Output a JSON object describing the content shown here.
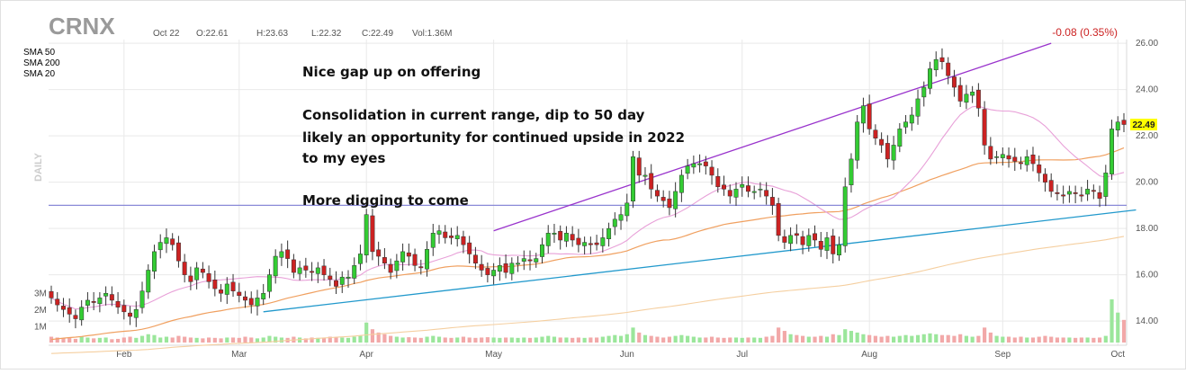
{
  "header": {
    "ticker": "CRNX",
    "date": "Oct 22",
    "open": "O:22.61",
    "high": "H:23.63",
    "low": "L:22.32",
    "close": "C:22.49",
    "volume": "Vol:1.36M",
    "change": "-0.08 (0.35%)"
  },
  "legend": [
    {
      "label": "SMA 50",
      "color": "#f0a060"
    },
    {
      "label": "SMA 200",
      "color": "#f5cfa0"
    },
    {
      "label": "SMA 20",
      "color": "#e8a0d8"
    }
  ],
  "period_label": "DAILY",
  "annotations": [
    "Nice gap up on offering",
    "Consolidation in current range, dip to 50 day",
    "likely an opportunity for continued upside in 2022",
    "to my eyes",
    "More digging to come"
  ],
  "last_price": "22.49",
  "colors": {
    "up": "#33cc33",
    "down": "#cc2222",
    "vol_up": "#9be69b",
    "vol_down": "#f2a8a8",
    "trend_upper": "#9933cc",
    "trend_lower": "#2299cc",
    "horizontal": "#8a8ad8",
    "grid": "#e9e9e9",
    "price_tag": "#ffff00"
  },
  "chart_data": {
    "type": "candlestick",
    "y_range": [
      13.5,
      26.2
    ],
    "y_ticks": [
      "26.00",
      "24.00",
      "22.00",
      "20.00",
      "18.00",
      "16.00",
      "14.00"
    ],
    "y_tick_values": [
      26,
      24,
      22,
      20,
      18,
      16,
      14
    ],
    "x_ticks": [
      "Feb",
      "Mar",
      "Apr",
      "May",
      "Jun",
      "Jul",
      "Aug",
      "Sep",
      "Oct"
    ],
    "volume_ticks": [
      "3M",
      "2M",
      "1M"
    ],
    "volume_tick_values": [
      3,
      2,
      1
    ],
    "closes": [
      15.0,
      14.7,
      14.5,
      14.3,
      14.1,
      14.6,
      14.9,
      14.8,
      15.0,
      15.2,
      14.9,
      14.6,
      14.4,
      14.2,
      14.5,
      15.3,
      16.2,
      17.0,
      17.4,
      17.6,
      17.3,
      16.6,
      16.0,
      15.7,
      16.3,
      16.1,
      15.7,
      15.4,
      15.2,
      15.6,
      15.3,
      15.1,
      14.9,
      14.7,
      15.0,
      15.2,
      16.0,
      16.8,
      17.0,
      16.7,
      16.1,
      16.3,
      16.2,
      16.1,
      16.3,
      16.0,
      15.8,
      15.5,
      15.9,
      15.9,
      16.4,
      16.9,
      18.6,
      17.0,
      16.8,
      16.5,
      16.1,
      16.6,
      17.0,
      16.8,
      16.4,
      16.3,
      17.1,
      17.8,
      17.9,
      17.6,
      17.6,
      17.7,
      17.3,
      16.9,
      16.5,
      16.2,
      16.0,
      16.2,
      16.4,
      16.1,
      16.5,
      16.5,
      16.7,
      16.6,
      16.7,
      17.3,
      17.8,
      17.8,
      17.5,
      17.8,
      17.5,
      17.3,
      17.4,
      17.3,
      17.3,
      17.6,
      18.0,
      18.4,
      18.6,
      19.1,
      21.1,
      20.3,
      20.3,
      19.7,
      19.4,
      19.2,
      18.9,
      19.6,
      20.3,
      20.7,
      20.8,
      20.8,
      20.7,
      20.3,
      19.8,
      19.7,
      19.4,
      19.7,
      19.9,
      19.6,
      19.6,
      19.7,
      19.4,
      19.0,
      17.7,
      17.4,
      17.7,
      17.7,
      17.3,
      17.7,
      17.5,
      17.1,
      17.6,
      16.9,
      17.3,
      19.8,
      21.0,
      22.6,
      23.3,
      22.3,
      21.9,
      21.6,
      21.0,
      21.6,
      22.3,
      22.6,
      22.9,
      23.6,
      24.1,
      24.9,
      25.3,
      25.2,
      24.6,
      24.1,
      23.5,
      23.8,
      23.9,
      23.2,
      21.6,
      21.0,
      21.1,
      21.2,
      21.0,
      20.9,
      20.8,
      21.1,
      20.8,
      20.4,
      20.0,
      19.6,
      19.5,
      19.4,
      19.6,
      19.5,
      19.4,
      19.7,
      19.6,
      19.3,
      20.4,
      22.3,
      22.6,
      22.49
    ],
    "volumes": [
      0.35,
      0.3,
      0.25,
      0.28,
      0.22,
      0.35,
      0.3,
      0.25,
      0.28,
      0.3,
      0.2,
      0.22,
      0.3,
      0.35,
      0.28,
      0.4,
      0.5,
      0.45,
      0.3,
      0.35,
      0.3,
      0.4,
      0.35,
      0.3,
      0.28,
      0.25,
      0.3,
      0.28,
      0.25,
      0.3,
      0.3,
      0.28,
      0.35,
      0.3,
      0.25,
      0.3,
      0.4,
      0.35,
      0.3,
      0.28,
      0.35,
      0.3,
      0.25,
      0.3,
      0.28,
      0.3,
      0.35,
      0.3,
      0.3,
      0.28,
      0.35,
      0.4,
      1.2,
      0.8,
      0.6,
      0.5,
      0.4,
      0.35,
      0.3,
      0.32,
      0.3,
      0.28,
      0.35,
      0.4,
      0.35,
      0.3,
      0.28,
      0.3,
      0.35,
      0.3,
      0.28,
      0.3,
      0.32,
      0.3,
      0.28,
      0.3,
      0.3,
      0.28,
      0.3,
      0.28,
      0.3,
      0.35,
      0.4,
      0.35,
      0.3,
      0.3,
      0.28,
      0.3,
      0.28,
      0.3,
      0.3,
      0.35,
      0.4,
      0.45,
      0.4,
      0.5,
      0.9,
      0.6,
      0.45,
      0.4,
      0.35,
      0.3,
      0.35,
      0.4,
      0.45,
      0.4,
      0.35,
      0.3,
      0.3,
      0.35,
      0.3,
      0.28,
      0.3,
      0.3,
      0.28,
      0.3,
      0.3,
      0.28,
      0.35,
      0.4,
      0.9,
      0.7,
      0.5,
      0.45,
      0.4,
      0.35,
      0.35,
      0.4,
      0.35,
      0.5,
      0.45,
      0.8,
      0.7,
      0.6,
      0.5,
      0.45,
      0.4,
      0.35,
      0.4,
      0.35,
      0.4,
      0.45,
      0.4,
      0.45,
      0.5,
      0.55,
      0.5,
      0.45,
      0.45,
      0.4,
      0.5,
      0.4,
      0.35,
      0.4,
      0.9,
      0.6,
      0.4,
      0.35,
      0.35,
      0.3,
      0.35,
      0.3,
      0.3,
      0.35,
      0.4,
      0.35,
      0.3,
      0.3,
      0.3,
      0.28,
      0.3,
      0.3,
      0.28,
      0.3,
      0.4,
      2.6,
      1.8,
      1.36
    ],
    "trendlines": {
      "upper": [
        [
          0,
          14.3
        ],
        [
          165,
          26.0
        ]
      ],
      "lower": [
        [
          0,
          14.4
        ],
        [
          179,
          18.8
        ]
      ],
      "horizontal": 19.0
    }
  }
}
